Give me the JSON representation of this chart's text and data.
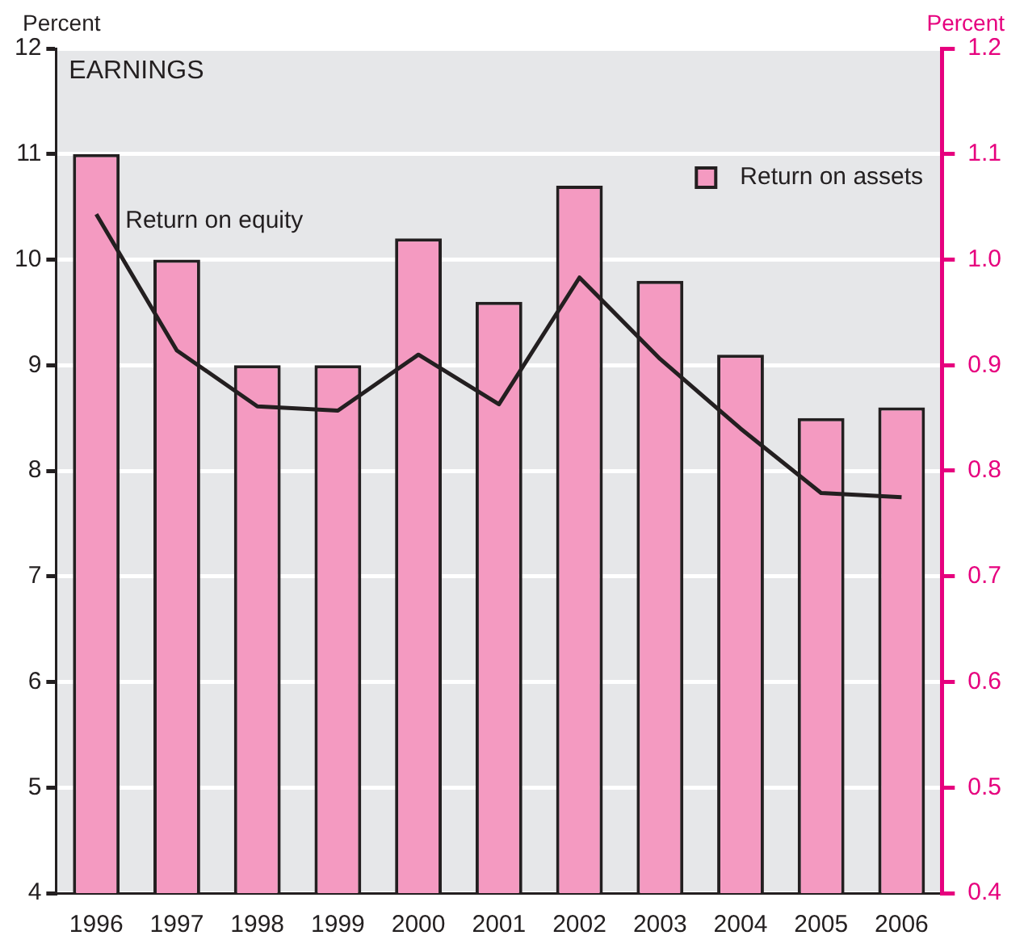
{
  "chart_data": {
    "type": "bar",
    "title": "EARNINGS",
    "ylabel": "Percent",
    "y2label": "Percent",
    "categories": [
      "1996",
      "1997",
      "1998",
      "1999",
      "2000",
      "2001",
      "2002",
      "2003",
      "2004",
      "2005",
      "2006"
    ],
    "series": [
      {
        "name": "Return on assets",
        "axis": "y2",
        "color": "#f49ac1",
        "values": [
          1.1,
          1.0,
          0.9,
          0.9,
          1.02,
          0.96,
          1.07,
          0.98,
          0.91,
          0.85,
          0.86
        ]
      },
      {
        "name": "Return on equity",
        "type": "line",
        "color": "#231f20",
        "values": [
          10.43,
          9.14,
          8.61,
          8.57,
          9.1,
          8.63,
          9.83,
          9.06,
          8.4,
          7.79,
          7.75
        ]
      }
    ],
    "ylim": [
      4,
      12
    ],
    "yticks": [
      4,
      5,
      6,
      7,
      8,
      9,
      10,
      11,
      12
    ],
    "y2lim": [
      0.4,
      1.2
    ],
    "y2ticks": [
      0.4,
      0.5,
      0.6,
      0.7,
      0.8,
      0.9,
      {
        "value": 1.0,
        "label": "1.0"
      },
      1.1,
      1.2
    ],
    "grid": "y",
    "legend": "top right"
  }
}
